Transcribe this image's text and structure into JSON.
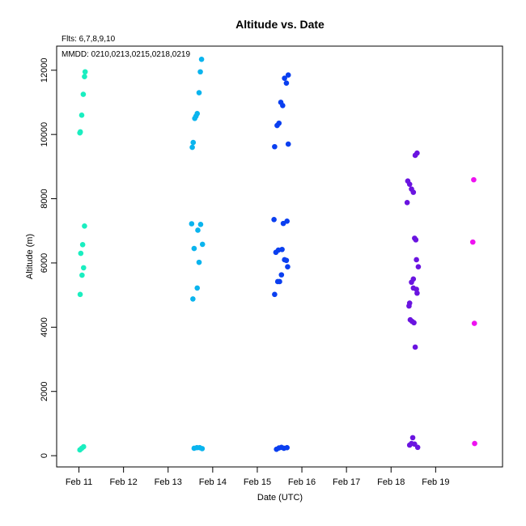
{
  "chart_data": {
    "type": "scatter",
    "title": "Altitude  vs. Date",
    "xlabel": "Date (UTC)",
    "ylabel": "Altitude (m)",
    "annotations": [
      "Flts: 6,7,8,9,10",
      "MMDD: 0210,0213,0215,0218,0219"
    ],
    "x_ticks": [
      "Feb 11",
      "Feb 12",
      "Feb 13",
      "Feb 14",
      "Feb 15",
      "Feb 16",
      "Feb 17",
      "Feb 18",
      "Feb 19"
    ],
    "xlim": [
      "2010-02-10T12:00",
      "2010-02-20T12:00"
    ],
    "ylim": [
      -350,
      12750
    ],
    "y_ticks": [
      0,
      2000,
      4000,
      6000,
      8000,
      10000,
      12000
    ],
    "grid": false,
    "series": [
      {
        "color": "#1aeec0",
        "points": [
          [
            "2010-02-11T00:45",
            10080
          ],
          [
            "2010-02-11T00:30",
            10050
          ],
          [
            "2010-02-11T01:30",
            10600
          ],
          [
            "2010-02-11T02:20",
            11250
          ],
          [
            "2010-02-11T03:00",
            11800
          ],
          [
            "2010-02-11T03:20",
            11950
          ],
          [
            "2010-02-11T03:00",
            7150
          ],
          [
            "2010-02-11T02:00",
            6570
          ],
          [
            "2010-02-11T01:00",
            6300
          ],
          [
            "2010-02-11T02:30",
            5850
          ],
          [
            "2010-02-11T01:40",
            5620
          ],
          [
            "2010-02-11T00:40",
            5020
          ],
          [
            "2010-02-11T00:30",
            180
          ],
          [
            "2010-02-11T01:30",
            230
          ],
          [
            "2010-02-11T02:30",
            280
          ]
        ]
      },
      {
        "color": "#0ab4ee",
        "points": [
          [
            "2010-02-13T13:00",
            9600
          ],
          [
            "2010-02-13T13:30",
            9750
          ],
          [
            "2010-02-13T14:20",
            10500
          ],
          [
            "2010-02-13T15:00",
            10570
          ],
          [
            "2010-02-13T15:40",
            10650
          ],
          [
            "2010-02-13T16:40",
            11300
          ],
          [
            "2010-02-13T17:20",
            11950
          ],
          [
            "2010-02-13T18:00",
            12340
          ],
          [
            "2010-02-13T12:40",
            7220
          ],
          [
            "2010-02-13T17:30",
            7200
          ],
          [
            "2010-02-13T16:00",
            7020
          ],
          [
            "2010-02-13T14:00",
            6450
          ],
          [
            "2010-02-13T18:30",
            6580
          ],
          [
            "2010-02-13T16:40",
            6020
          ],
          [
            "2010-02-13T15:40",
            5220
          ],
          [
            "2010-02-13T13:20",
            4880
          ],
          [
            "2010-02-13T14:00",
            230
          ],
          [
            "2010-02-13T15:30",
            250
          ],
          [
            "2010-02-13T17:00",
            250
          ],
          [
            "2010-02-13T18:20",
            220
          ]
        ]
      },
      {
        "color": "#0a3ff0",
        "points": [
          [
            "2010-02-15T09:20",
            9620
          ],
          [
            "2010-02-15T10:40",
            10280
          ],
          [
            "2010-02-15T11:40",
            10350
          ],
          [
            "2010-02-15T12:40",
            11000
          ],
          [
            "2010-02-15T13:40",
            10900
          ],
          [
            "2010-02-15T14:40",
            11750
          ],
          [
            "2010-02-15T15:40",
            11600
          ],
          [
            "2010-02-15T16:40",
            11850
          ],
          [
            "2010-02-15T16:40",
            9700
          ],
          [
            "2010-02-15T09:00",
            7350
          ],
          [
            "2010-02-15T14:00",
            7230
          ],
          [
            "2010-02-15T16:00",
            7300
          ],
          [
            "2010-02-15T10:00",
            6330
          ],
          [
            "2010-02-15T11:20",
            6400
          ],
          [
            "2010-02-15T13:20",
            6420
          ],
          [
            "2010-02-15T14:40",
            6100
          ],
          [
            "2010-02-15T15:40",
            6080
          ],
          [
            "2010-02-15T16:20",
            5880
          ],
          [
            "2010-02-15T13:00",
            5630
          ],
          [
            "2010-02-15T11:00",
            5420
          ],
          [
            "2010-02-15T12:00",
            5420
          ],
          [
            "2010-02-15T09:20",
            5020
          ],
          [
            "2010-02-15T10:20",
            200
          ],
          [
            "2010-02-15T11:40",
            240
          ],
          [
            "2010-02-15T13:00",
            260
          ],
          [
            "2010-02-15T14:20",
            230
          ],
          [
            "2010-02-15T16:00",
            250
          ]
        ]
      },
      {
        "color": "#6a14e0",
        "points": [
          [
            "2010-02-18T13:00",
            9350
          ],
          [
            "2010-02-18T14:00",
            9420
          ],
          [
            "2010-02-18T08:40",
            7880
          ],
          [
            "2010-02-18T09:00",
            8550
          ],
          [
            "2010-02-18T10:00",
            8450
          ],
          [
            "2010-02-18T11:00",
            8300
          ],
          [
            "2010-02-18T12:00",
            8200
          ],
          [
            "2010-02-18T12:40",
            6770
          ],
          [
            "2010-02-18T13:20",
            6720
          ],
          [
            "2010-02-18T13:40",
            6100
          ],
          [
            "2010-02-18T14:40",
            5880
          ],
          [
            "2010-02-18T12:00",
            5500
          ],
          [
            "2010-02-18T11:00",
            5400
          ],
          [
            "2010-02-18T12:00",
            5220
          ],
          [
            "2010-02-18T13:40",
            5180
          ],
          [
            "2010-02-18T14:00",
            5060
          ],
          [
            "2010-02-18T10:00",
            4750
          ],
          [
            "2010-02-18T09:40",
            4660
          ],
          [
            "2010-02-18T10:20",
            4230
          ],
          [
            "2010-02-18T11:20",
            4180
          ],
          [
            "2010-02-18T12:20",
            4140
          ],
          [
            "2010-02-18T13:00",
            3380
          ],
          [
            "2010-02-18T10:00",
            330
          ],
          [
            "2010-02-18T11:00",
            380
          ],
          [
            "2010-02-18T12:40",
            360
          ],
          [
            "2010-02-18T11:40",
            560
          ],
          [
            "2010-02-18T14:20",
            260
          ]
        ]
      },
      {
        "color": "#ee12f0",
        "points": [
          [
            "2010-02-19T20:30",
            8590
          ],
          [
            "2010-02-19T20:00",
            6650
          ],
          [
            "2010-02-19T20:50",
            4120
          ],
          [
            "2010-02-19T21:00",
            380
          ]
        ]
      }
    ]
  }
}
